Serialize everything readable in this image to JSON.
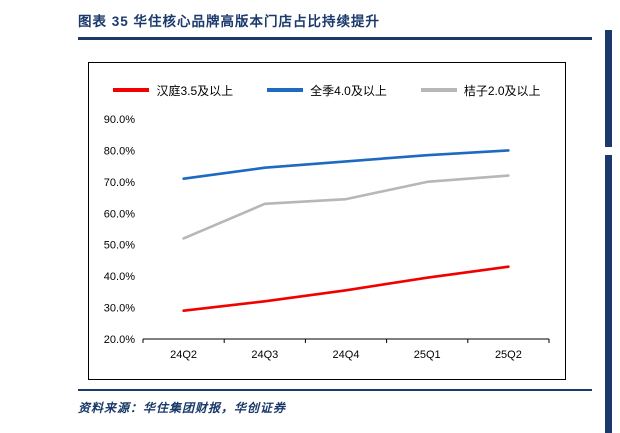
{
  "header": {
    "title": "图表 35  华住核心品牌高版本门店占比持续提升"
  },
  "footer": {
    "source": "资料来源：华住集团财报，华创证券"
  },
  "colors": {
    "accent_navy": "#1b3a6b",
    "series_red": "#f20000",
    "series_blue": "#1e6ac1",
    "series_gray": "#b7b7b7",
    "axis_black": "#000000"
  },
  "chart_data": {
    "type": "line",
    "categories": [
      "24Q2",
      "24Q3",
      "24Q4",
      "25Q1",
      "25Q2"
    ],
    "series": [
      {
        "name": "汉庭3.5及以上",
        "color": "#f20000",
        "values": [
          29.0,
          32.0,
          35.5,
          39.5,
          43.0
        ]
      },
      {
        "name": "全季4.0及以上",
        "color": "#1e6ac1",
        "values": [
          71.0,
          74.5,
          76.5,
          78.5,
          80.0
        ]
      },
      {
        "name": "桔子2.0及以上",
        "color": "#b7b7b7",
        "values": [
          52.0,
          63.0,
          64.5,
          70.0,
          72.0
        ]
      }
    ],
    "ylim": [
      20,
      90
    ],
    "ytick_step": 10,
    "ytick_suffix": "%",
    "grid": false,
    "legend_position": "top",
    "title": "华住核心品牌高版本门店占比持续提升",
    "xlabel": "",
    "ylabel": ""
  }
}
